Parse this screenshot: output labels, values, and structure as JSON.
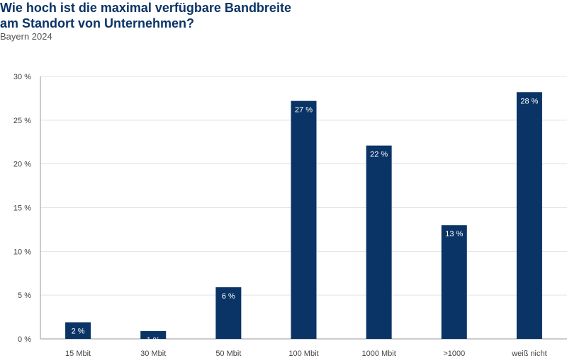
{
  "header": {
    "title_line1": "Wie hoch ist die maximal verfügbare Bandbreite",
    "title_line2": "am Standort von Unternehmen?",
    "subtitle": "Bayern 2024"
  },
  "colors": {
    "bar": "#0b3466",
    "grid": "#e3e3e3",
    "axis": "#999999"
  },
  "chart_data": {
    "type": "bar",
    "title": "Wie hoch ist die maximal verfügbare Bandbreite am Standort von Unternehmen?",
    "subtitle": "Bayern 2024",
    "categories": [
      "15 Mbit",
      "30 Mbit",
      "50 Mbit",
      "100 Mbit",
      "1000 Mbit",
      ">1000",
      "weiß nicht"
    ],
    "values": [
      2,
      1,
      6,
      27,
      22,
      13,
      28
    ],
    "bar_heights": [
      1.9,
      0.9,
      5.9,
      27.2,
      22.1,
      13.0,
      28.2
    ],
    "data_labels": [
      "2 %",
      "1 %",
      "6 %",
      "27 %",
      "22 %",
      "13 %",
      "28 %"
    ],
    "yticks": [
      0,
      5,
      10,
      15,
      20,
      25,
      30
    ],
    "ytick_labels": [
      "0 %",
      "5 %",
      "10 %",
      "15 %",
      "20 %",
      "25 %",
      "30 %"
    ],
    "ylim": [
      0,
      30
    ],
    "xlabel": "",
    "ylabel": "",
    "grid": true,
    "legend": false
  }
}
